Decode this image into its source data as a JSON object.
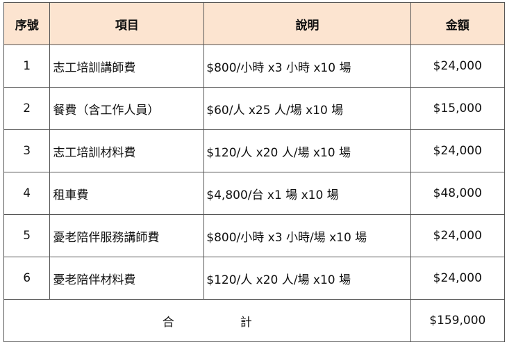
{
  "header": {
    "no": "序號",
    "item": "項目",
    "desc": "說明",
    "amount": "金額"
  },
  "rows": [
    {
      "no": "1",
      "item": "志工培訓講師費",
      "desc": "$800/小時 x3 小時 x10 場",
      "amount": "$24,000"
    },
    {
      "no": "2",
      "item": "餐費（含工作人員）",
      "desc": "$60/人 x25 人/場 x10 場",
      "amount": "$15,000"
    },
    {
      "no": "3",
      "item": "志工培訓材料費",
      "desc": "$120/人 x20 人/場 x10 場",
      "amount": "$24,000"
    },
    {
      "no": "4",
      "item": "租車費",
      "desc": "$4,800/台 x1 場 x10 場",
      "amount": "$48,000"
    },
    {
      "no": "5",
      "item": "憂老陪伴服務講師費",
      "desc": "$800/小時 x3 小時/場 x10 場",
      "amount": "$24,000"
    },
    {
      "no": "6",
      "item": "憂老陪伴材料費",
      "desc": "$120/人 x20 人/場 x10 場",
      "amount": "$24,000"
    }
  ],
  "total": {
    "label_1": "合",
    "label_2": "計",
    "amount": "$159,000"
  },
  "colors": {
    "header_bg": "#fce4d0",
    "border": "#555555"
  }
}
